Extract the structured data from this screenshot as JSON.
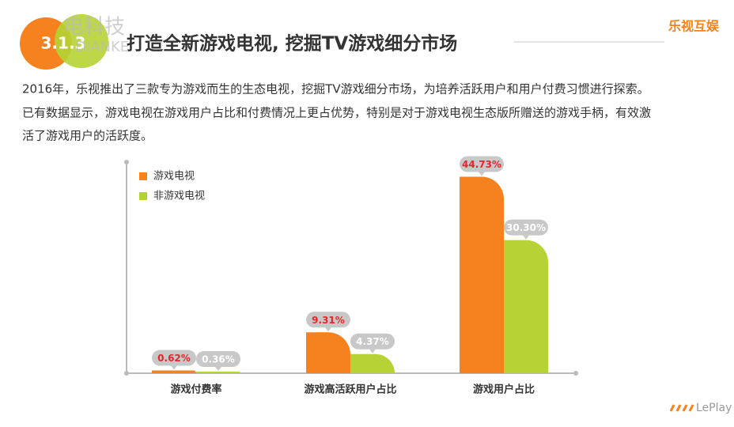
{
  "header": {
    "section": "3.1.3",
    "title": "打造全新游戏电视, 挖掘TV游戏细分市场",
    "logo": "乐视互娱",
    "watermark": "电科技",
    "watermark_sub": "DIANKE"
  },
  "paragraph": [
    "2016年，乐视推出了三款专为游戏而生的生态电视，挖掘TV游戏细分市场，为培养活跃用户和用户付费习惯进行探索。",
    "已有数据显示，游戏电视在游戏用户占比和付费情况上更占优势，特别是对于游戏电视生态版所赠送的游戏手柄，有效激",
    "活了游戏用户的活跃度。"
  ],
  "footer": {
    "brand": "LePlay"
  },
  "chart_data": {
    "type": "bar",
    "categories": [
      "游戏付费率",
      "游戏高活跃用户占比",
      "游戏用户占比"
    ],
    "series": [
      {
        "name": "游戏电视",
        "color": "#f5821f",
        "values": [
          0.62,
          9.31,
          44.73
        ],
        "value_labels": [
          "0.62%",
          "9.31%",
          "44.73%"
        ]
      },
      {
        "name": "非游戏电视",
        "color": "#b5d334",
        "values": [
          0.36,
          4.37,
          30.3
        ],
        "value_labels": [
          "0.36%",
          "4.37%",
          "30.30%"
        ]
      }
    ],
    "ylim": [
      0,
      45
    ],
    "legend": "upper-left"
  }
}
